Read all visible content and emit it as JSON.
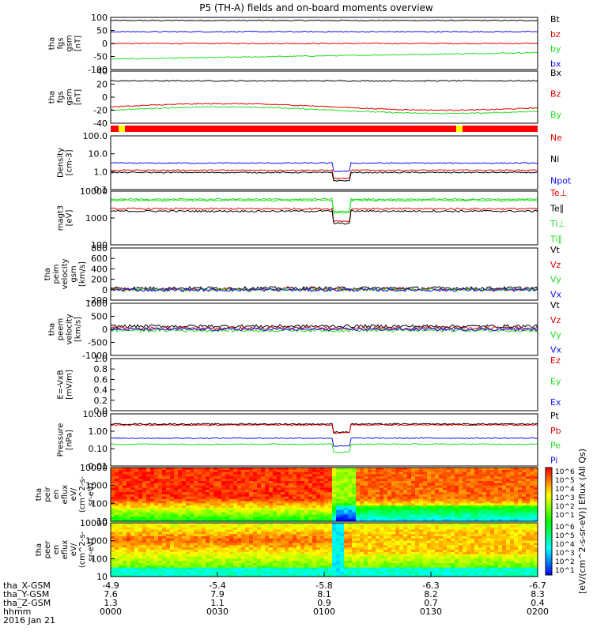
{
  "title": "P5 (TH-A) fields and on-board moments overview",
  "date_label": "2016 Jan 21",
  "colors": {
    "black": "#000000",
    "red": "#e00000",
    "green": "#22dd22",
    "blue": "#1010ee",
    "yellow": "#ffff00"
  },
  "chart_data": {
    "type": "line",
    "x_time_ticks": [
      "0000",
      "0030",
      "0100",
      "0130",
      "0200"
    ],
    "x_axis_rows": [
      {
        "label": "tha_X-GSM",
        "values": [
          "-4.9",
          "-5.4",
          "-5.8",
          "-6.3",
          "-6.7"
        ]
      },
      {
        "label": "tha_Y-GSM",
        "values": [
          "7.6",
          "7.9",
          "8.1",
          "8.2",
          "8.3"
        ]
      },
      {
        "label": "tha_Z-GSM",
        "values": [
          "1.3",
          "1.1",
          "0.9",
          "0.7",
          "0.4"
        ]
      },
      {
        "label": "hhmm",
        "values": [
          "0000",
          "0030",
          "0100",
          "0130",
          "0200"
        ]
      }
    ],
    "panels": [
      {
        "id": "fgs_gsm",
        "ylabel": [
          "tha",
          "fgs",
          "gsm",
          "[nT]"
        ],
        "ticks": [
          "100",
          "50",
          "0",
          "-50",
          "-100"
        ],
        "ylim": [
          -100,
          100
        ],
        "scale": "linear",
        "series": [
          {
            "name": "Bt",
            "color": "black",
            "base": 88
          },
          {
            "name": "bz",
            "color": "red",
            "base": 0
          },
          {
            "name": "by",
            "color": "green",
            "base": -60
          },
          {
            "name": "bx",
            "color": "blue",
            "base": 45
          }
        ]
      },
      {
        "id": "fgs_dsl",
        "ylabel": [
          "tha",
          "fgs",
          "gsm",
          "[nT]"
        ],
        "ticks": [
          "40",
          "20",
          "0",
          "-20",
          "-40"
        ],
        "ylim": [
          -40,
          40
        ],
        "scale": "linear",
        "series": [
          {
            "name": "Bx",
            "color": "black",
            "base": 25
          },
          {
            "name": "Bz",
            "color": "red",
            "base": -15
          },
          {
            "name": "By",
            "color": "green",
            "base": -20
          }
        ]
      },
      {
        "id": "density",
        "ylabel": [
          "Density",
          "[cm-3]"
        ],
        "ticks": [
          "100.0",
          "10.0",
          "1.0",
          "0.1"
        ],
        "ylim": [
          0.1,
          100
        ],
        "scale": "log",
        "series": [
          {
            "name": "Ne",
            "color": "red",
            "base": 1.2
          },
          {
            "name": "Ni",
            "color": "black",
            "base": 0.9
          },
          {
            "name": "Npot",
            "color": "blue",
            "base": 3.0
          }
        ]
      },
      {
        "id": "temp",
        "ylabel": [
          "magt3",
          "[eV]"
        ],
        "ticks": [
          "10000",
          "1000",
          "100"
        ],
        "ylim": [
          100,
          10000
        ],
        "scale": "log",
        "series": [
          {
            "name": "Te⊥",
            "color": "red",
            "base": 2200
          },
          {
            "name": "Te∥",
            "color": "black",
            "base": 1800
          },
          {
            "name": "Ti⊥",
            "color": "green",
            "base": 4500
          },
          {
            "name": "Ti∥",
            "color": "green",
            "base": 5000
          }
        ]
      },
      {
        "id": "peim_vel",
        "ylabel": [
          "tha",
          "peim",
          "velocity",
          "gsm",
          "[km/s]"
        ],
        "ticks": [
          "800",
          "600",
          "400",
          "200",
          "0",
          "-200"
        ],
        "ylim": [
          -200,
          800
        ],
        "scale": "linear",
        "series": [
          {
            "name": "Vt",
            "color": "black",
            "base": 30
          },
          {
            "name": "Vz",
            "color": "red",
            "base": 10
          },
          {
            "name": "Vy",
            "color": "green",
            "base": 0
          },
          {
            "name": "Vx",
            "color": "blue",
            "base": -5
          }
        ]
      },
      {
        "id": "peem_vel",
        "ylabel": [
          "tha",
          "peem",
          "velocity",
          "[km/s]"
        ],
        "ticks": [
          "1000",
          "500",
          "0",
          "-500",
          "-1000"
        ],
        "ylim": [
          -1000,
          1000
        ],
        "scale": "linear",
        "series": [
          {
            "name": "Vt",
            "color": "black",
            "base": 120
          },
          {
            "name": "Vz",
            "color": "red",
            "base": 40
          },
          {
            "name": "Vy",
            "color": "green",
            "base": -40
          },
          {
            "name": "Vx",
            "color": "blue",
            "base": 0
          }
        ]
      },
      {
        "id": "efield",
        "ylabel": [
          "E=-VxB",
          "[mV/m]"
        ],
        "ticks": [
          "1.0",
          "0.8",
          "0.6",
          "0.4",
          "0.2",
          "0.0"
        ],
        "ylim": [
          0,
          1
        ],
        "scale": "linear",
        "series": [
          {
            "name": "Ez",
            "color": "red"
          },
          {
            "name": "Ey",
            "color": "green"
          },
          {
            "name": "Ex",
            "color": "blue"
          }
        ]
      },
      {
        "id": "pressure",
        "ylabel": [
          "Pressure",
          "[nPa]"
        ],
        "ticks": [
          "10.00",
          "1.00",
          "0.10",
          "0.01"
        ],
        "ylim": [
          0.01,
          10
        ],
        "scale": "log",
        "series": [
          {
            "name": "Pt",
            "color": "black",
            "base": 2.6
          },
          {
            "name": "Pb",
            "color": "red",
            "base": 2.3
          },
          {
            "name": "Pe",
            "color": "green",
            "base": 0.18
          },
          {
            "name": "Pi",
            "color": "blue",
            "base": 0.4
          }
        ]
      },
      {
        "id": "peir_spec",
        "type": "heatmap",
        "ylabel": [
          "tha",
          "peir",
          "en",
          "eflux",
          "eV/",
          "(cm^2-s-",
          "sr-eV)"
        ],
        "ticks": [
          "10000",
          "1000",
          "100",
          "10"
        ]
      },
      {
        "id": "peer_spec",
        "type": "heatmap",
        "ylabel": [
          "tha",
          "peer",
          "en",
          "eflux",
          "eV/",
          "(cm^2-s-",
          "sr-eV)"
        ],
        "ticks": [
          "10000",
          "1000",
          "100",
          "10"
        ]
      }
    ],
    "colorbar": {
      "ticks_upper": [
        "10^6",
        "10^5",
        "10^4",
        "10^3",
        "10^2",
        "10^1"
      ],
      "ticks_lower": [
        "10^6",
        "10^5",
        "10^4",
        "10^3",
        "10^2",
        "10^1"
      ],
      "label": "[eV/(cm^2-s-sr-eV)] Eflux (All Qs)"
    }
  }
}
